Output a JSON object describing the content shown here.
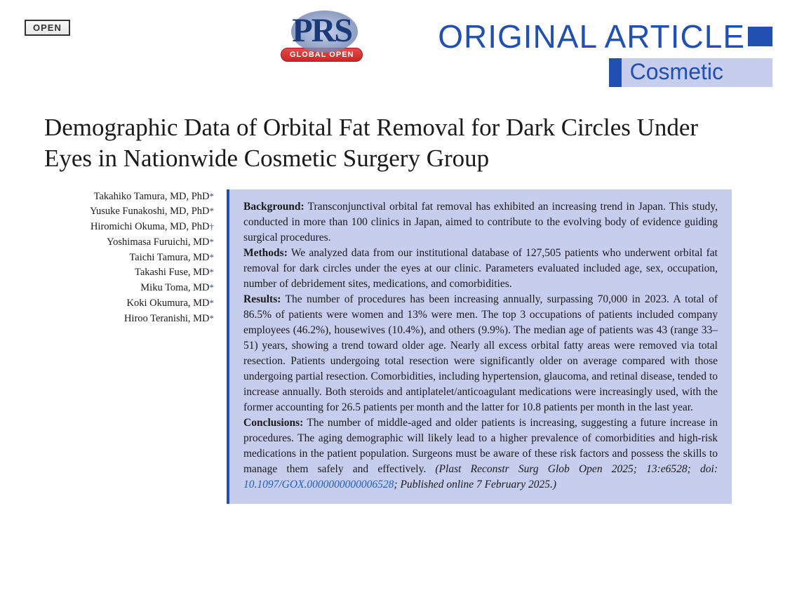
{
  "badge": {
    "open_label": "OPEN"
  },
  "logo": {
    "text": "PRS",
    "pill": "GLOBAL OPEN"
  },
  "header": {
    "article_type": "ORIGINAL ARTICLE",
    "category": "Cosmetic",
    "accent_color": "#2050b0",
    "category_bg": "#c6cded"
  },
  "title": "Demographic Data of Orbital Fat Removal for Dark Circles Under Eyes in Nationwide Cosmetic Surgery Group",
  "authors": [
    {
      "name": "Takahiko Tamura, MD, PhD",
      "mark": "*"
    },
    {
      "name": "Yusuke Funakoshi, MD, PhD",
      "mark": "*"
    },
    {
      "name": "Hiromichi Okuma, MD, PhD",
      "mark": "†"
    },
    {
      "name": "Yoshimasa Furuichi, MD",
      "mark": "*"
    },
    {
      "name": "Taichi Tamura, MD",
      "mark": "*"
    },
    {
      "name": "Takashi Fuse, MD",
      "mark": "*"
    },
    {
      "name": "Miku Toma, MD",
      "mark": "*"
    },
    {
      "name": "Koki Okumura, MD",
      "mark": "*"
    },
    {
      "name": "Hiroo Teranishi, MD",
      "mark": "*"
    }
  ],
  "abstract": {
    "sections": [
      {
        "label": "Background:",
        "text": " Transconjunctival orbital fat removal has exhibited an increasing trend in Japan. This study, conducted in more than 100 clinics in Japan, aimed to contribute to the evolving body of evidence guiding surgical procedures."
      },
      {
        "label": "Methods:",
        "text": " We analyzed data from our institutional database of 127,505 patients who underwent orbital fat removal for dark circles under the eyes at our clinic. Parameters evaluated included age, sex, occupation, number of debridement sites, medications, and comorbidities."
      },
      {
        "label": "Results:",
        "text": " The number of procedures has been increasing annually, surpassing 70,000 in 2023. A total of 86.5% of patients were women and 13% were men. The top 3 occupations of patients included company employees (46.2%), housewives (10.4%), and others (9.9%). The median age of patients was 43 (range 33–51) years, showing a trend toward older age. Nearly all excess orbital fatty areas were removed via total resection. Patients undergoing total resection were significantly older on average compared with those undergoing partial resection. Comorbidities, including hypertension, glaucoma, and retinal disease, tended to increase annually. Both steroids and antiplatelet/anticoagulant medications were increasingly used, with the former accounting for 26.5 patients per month and the latter for 10.8 patients per month in the last year."
      },
      {
        "label": "Conclusions:",
        "text": " The number of middle-aged and older patients is increasing, suggesting a future increase in procedures. The aging demographic will likely lead to a higher prevalence of comorbidities and high-risk medications in the patient population. Surgeons must be aware of these risk factors and possess the skills to manage them safely and effectively. "
      }
    ],
    "citation_prefix": "(Plast Reconstr Surg Glob Open 2025; 13:e6528; doi: ",
    "doi": "10.1097/GOX.0000000000006528",
    "citation_suffix": "; Published online 7 February 2025.)"
  },
  "style": {
    "title_fontsize": 35,
    "body_fontsize": 15.5,
    "author_fontsize": 14.5,
    "abstract_bg": "#c6cded",
    "abstract_border": "#2050b0"
  }
}
